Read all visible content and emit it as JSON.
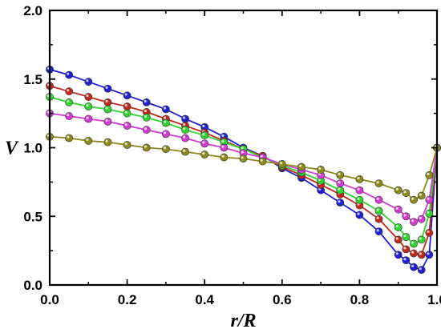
{
  "chart_data": {
    "type": "line",
    "xlabel": "r/R",
    "ylabel": "V",
    "xlim": [
      0.0,
      1.0
    ],
    "ylim": [
      0.0,
      2.0
    ],
    "xticks": [
      "0.0",
      "0.2",
      "0.4",
      "0.6",
      "0.8",
      "1.0"
    ],
    "yticks": [
      "0.0",
      "0.5",
      "1.0",
      "1.5",
      "2.0"
    ],
    "grid": false,
    "series": [
      {
        "color": "#1f1fd6",
        "x": [
          0.0,
          0.05,
          0.1,
          0.15,
          0.2,
          0.25,
          0.3,
          0.35,
          0.4,
          0.45,
          0.5,
          0.55,
          0.6,
          0.65,
          0.7,
          0.75,
          0.8,
          0.85,
          0.9,
          0.92,
          0.94,
          0.96,
          0.98,
          1.0
        ],
        "values": [
          1.57,
          1.53,
          1.48,
          1.43,
          1.38,
          1.33,
          1.28,
          1.21,
          1.15,
          1.08,
          1.0,
          0.94,
          0.85,
          0.78,
          0.69,
          0.6,
          0.51,
          0.39,
          0.22,
          0.18,
          0.13,
          0.11,
          0.22,
          1.0
        ]
      },
      {
        "color": "#c0281b",
        "x": [
          0.0,
          0.05,
          0.1,
          0.15,
          0.2,
          0.25,
          0.3,
          0.35,
          0.4,
          0.45,
          0.5,
          0.55,
          0.6,
          0.65,
          0.7,
          0.75,
          0.8,
          0.85,
          0.9,
          0.92,
          0.94,
          0.96,
          0.98,
          1.0
        ],
        "values": [
          1.45,
          1.41,
          1.37,
          1.33,
          1.3,
          1.26,
          1.21,
          1.16,
          1.11,
          1.05,
          0.99,
          0.94,
          0.86,
          0.8,
          0.73,
          0.66,
          0.58,
          0.48,
          0.33,
          0.26,
          0.23,
          0.22,
          0.38,
          1.0
        ]
      },
      {
        "color": "#2ed42e",
        "x": [
          0.0,
          0.05,
          0.1,
          0.15,
          0.2,
          0.25,
          0.3,
          0.35,
          0.4,
          0.45,
          0.5,
          0.55,
          0.6,
          0.65,
          0.7,
          0.75,
          0.8,
          0.85,
          0.9,
          0.92,
          0.94,
          0.96,
          0.98,
          1.0
        ],
        "values": [
          1.37,
          1.33,
          1.3,
          1.28,
          1.25,
          1.22,
          1.18,
          1.13,
          1.09,
          1.04,
          0.99,
          0.93,
          0.87,
          0.82,
          0.76,
          0.69,
          0.62,
          0.54,
          0.42,
          0.35,
          0.3,
          0.33,
          0.52,
          1.0
        ]
      },
      {
        "color": "#d43ad4",
        "x": [
          0.0,
          0.05,
          0.1,
          0.15,
          0.2,
          0.25,
          0.3,
          0.35,
          0.4,
          0.45,
          0.5,
          0.55,
          0.6,
          0.65,
          0.7,
          0.75,
          0.8,
          0.85,
          0.9,
          0.92,
          0.94,
          0.96,
          0.98,
          1.0
        ],
        "values": [
          1.25,
          1.23,
          1.21,
          1.19,
          1.16,
          1.13,
          1.1,
          1.07,
          1.03,
          1.0,
          0.96,
          0.93,
          0.88,
          0.84,
          0.8,
          0.74,
          0.69,
          0.62,
          0.55,
          0.5,
          0.46,
          0.48,
          0.62,
          1.0
        ]
      },
      {
        "color": "#8c8a1a",
        "x": [
          0.0,
          0.05,
          0.1,
          0.15,
          0.2,
          0.25,
          0.3,
          0.35,
          0.4,
          0.45,
          0.5,
          0.55,
          0.6,
          0.65,
          0.7,
          0.75,
          0.8,
          0.85,
          0.9,
          0.92,
          0.94,
          0.96,
          0.98,
          1.0
        ],
        "values": [
          1.08,
          1.07,
          1.05,
          1.04,
          1.02,
          1.0,
          0.99,
          0.97,
          0.95,
          0.93,
          0.92,
          0.9,
          0.88,
          0.86,
          0.84,
          0.8,
          0.77,
          0.74,
          0.69,
          0.67,
          0.62,
          0.65,
          0.8,
          1.0
        ]
      }
    ]
  }
}
